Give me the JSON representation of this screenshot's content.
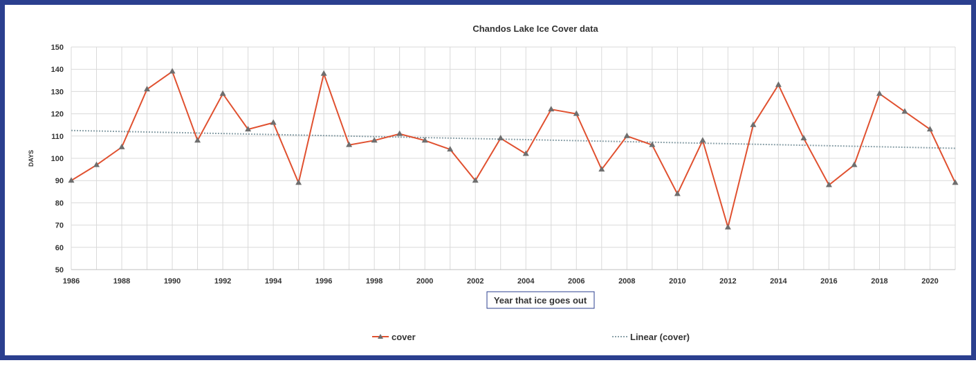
{
  "chart_data": {
    "type": "line",
    "title": "Chandos Lake Ice Cover data",
    "xlabel": "Year that ice goes out",
    "ylabel": "DAYS",
    "xlim": [
      1986,
      2021
    ],
    "ylim": [
      50,
      150
    ],
    "x_ticks": [
      1986,
      1988,
      1990,
      1992,
      1994,
      1996,
      1998,
      2000,
      2002,
      2004,
      2006,
      2008,
      2010,
      2012,
      2014,
      2016,
      2018,
      2020
    ],
    "y_ticks": [
      50,
      60,
      70,
      80,
      90,
      100,
      110,
      120,
      130,
      140,
      150
    ],
    "grid": true,
    "legend_position": "bottom",
    "series": [
      {
        "name": "cover",
        "color": "#e0502f",
        "marker": "triangle",
        "marker_color": "#6e6e6e",
        "x": [
          1986,
          1987,
          1988,
          1989,
          1990,
          1991,
          1992,
          1993,
          1994,
          1995,
          1996,
          1997,
          1998,
          1999,
          2000,
          2001,
          2002,
          2003,
          2004,
          2005,
          2006,
          2007,
          2008,
          2009,
          2010,
          2011,
          2012,
          2013,
          2014,
          2015,
          2016,
          2017,
          2018,
          2019,
          2020,
          2021
        ],
        "values": [
          90,
          97,
          105,
          131,
          139,
          108,
          129,
          113,
          116,
          89,
          138,
          106,
          108,
          111,
          108,
          104,
          90,
          109,
          102,
          122,
          120,
          95,
          110,
          106,
          84,
          108,
          69,
          115,
          133,
          109,
          88,
          97,
          129,
          121,
          113,
          89
        ]
      },
      {
        "name": "Linear (cover)",
        "color": "#8aa0a8",
        "style": "dotted",
        "x": [
          1986,
          2021
        ],
        "values": [
          112.5,
          104.5
        ]
      }
    ]
  }
}
